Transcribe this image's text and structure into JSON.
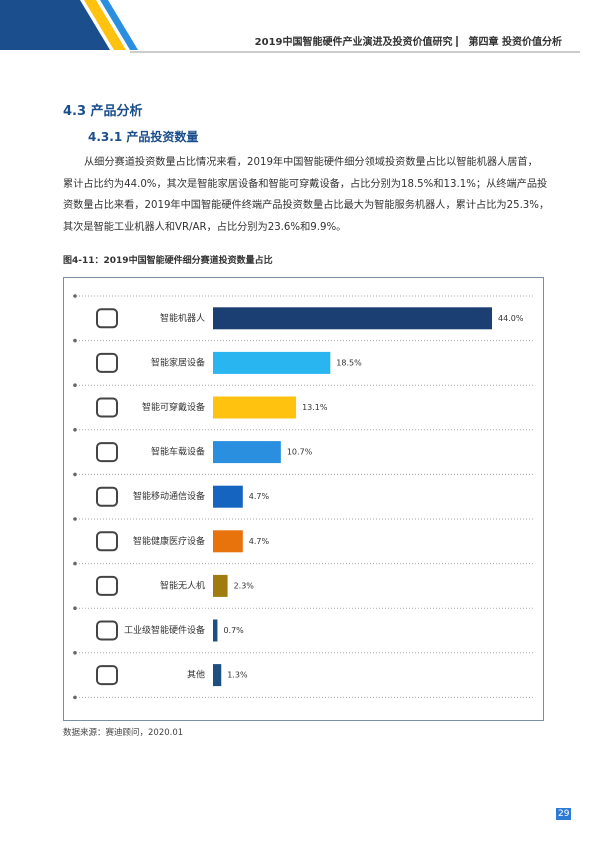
{
  "header": {
    "title": "2019中国智能硬件产业演进及投资价值研究",
    "chapter": "第四章 投资价值分析"
  },
  "section": "4.3 产品分析",
  "subsection": "4.3.1 产品投资数量",
  "paragraph": [
    "从细分赛道投资数量占比情况来看，2019年中国智能硬件细分领域投资数量占比以智能机器人居首，",
    "累计占比约为44.0%，其次是智能家居设备和智能可穿戴设备，占比分别为18.5%和13.1%；从终端产品投",
    "资数量占比来看，2019年中国智能硬件终端产品投资数量占比最大为智能服务机器人，累计占比为25.3%，",
    "其次是智能工业机器人和VR/AR，占比分别为23.6%和9.9%。"
  ],
  "chart_data": {
    "type": "bar",
    "orientation": "horizontal",
    "title": "图4-11：2019中国智能硬件细分赛道投资数量占比",
    "categories": [
      "智能机器人",
      "智能家居设备",
      "智能可穿戴设备",
      "智能车载设备",
      "智能移动通信设备",
      "智能健康医疗设备",
      "智能无人机",
      "工业级智能硬件设备",
      "其他"
    ],
    "values": [
      44.0,
      18.5,
      13.1,
      10.7,
      4.7,
      4.7,
      2.3,
      0.7,
      1.3
    ],
    "value_labels": [
      "44.0%",
      "18.5%",
      "13.1%",
      "10.7%",
      "4.7%",
      "4.7%",
      "2.3%",
      "0.7%",
      "1.3%"
    ],
    "colors": [
      "#1b3f73",
      "#29b6f0",
      "#ffc20e",
      "#2b8fe0",
      "#1565c0",
      "#e8720c",
      "#a07c10",
      "#1d4f80",
      "#1d4f80"
    ]
  },
  "source": "数据来源：赛迪顾问，2020.01",
  "page_number": "29"
}
